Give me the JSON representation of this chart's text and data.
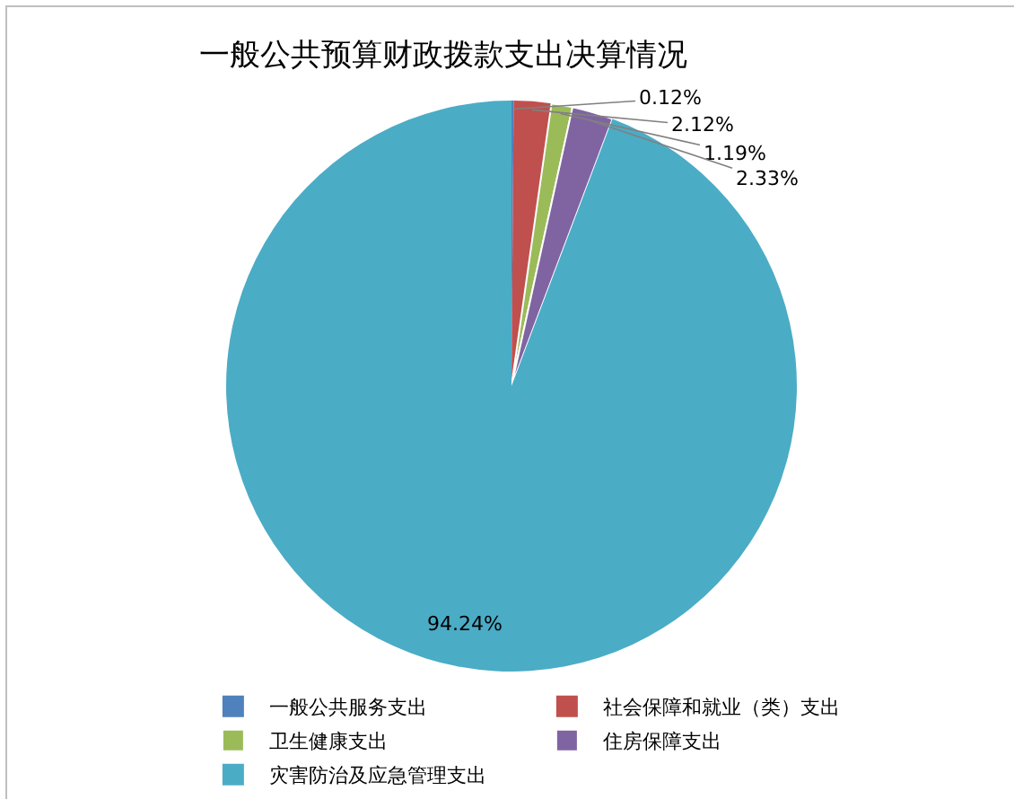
{
  "chart_data": {
    "type": "pie",
    "title": "一般公共预算财政拨款支出决算情况",
    "categories": [
      "一般公共服务支出",
      "社会保障和就业（类）支出",
      "卫生健康支出",
      "住房保障支出",
      "灾害防治及应急管理支出"
    ],
    "values": [
      0.12,
      2.12,
      1.19,
      2.33,
      94.24
    ],
    "value_labels": [
      "0.12%",
      "2.12%",
      "1.19%",
      "2.33%",
      "94.24%"
    ],
    "colors": [
      "#4f81bd",
      "#c0504d",
      "#9bbb59",
      "#8064a2",
      "#4bacc6"
    ],
    "legend": "bottom"
  }
}
